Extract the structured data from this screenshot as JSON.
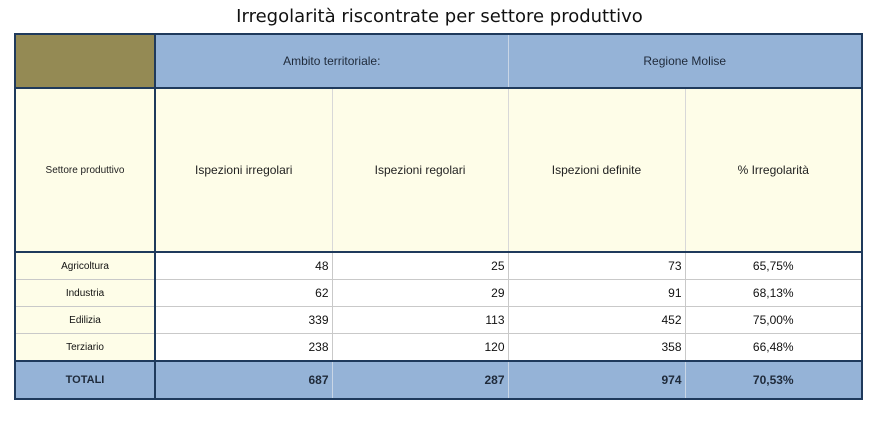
{
  "title": "Irregolarità riscontrate per settore produttivo",
  "header": {
    "group_left": "Ambito territoriale:",
    "group_right": "Regione Molise"
  },
  "columns": {
    "sector": "Settore produttivo",
    "irregular": "Ispezioni irregolari",
    "regular": "Ispezioni regolari",
    "defined": "Ispezioni definite",
    "pct": "% Irregolarità"
  },
  "rows": [
    {
      "sector": "Agricoltura",
      "irregular": "48",
      "regular": "25",
      "defined": "73",
      "pct": "65,75%"
    },
    {
      "sector": "Industria",
      "irregular": "62",
      "regular": "29",
      "defined": "91",
      "pct": "68,13%"
    },
    {
      "sector": "Edilizia",
      "irregular": "339",
      "regular": "113",
      "defined": "452",
      "pct": "75,00%"
    },
    {
      "sector": "Terziario",
      "irregular": "238",
      "regular": "120",
      "defined": "358",
      "pct": "66,48%"
    }
  ],
  "totals": {
    "label": "TOTALI",
    "irregular": "687",
    "regular": "287",
    "defined": "974",
    "pct": "70,53%"
  },
  "colors": {
    "header_blue": "#95b3d7",
    "corner_olive": "#948a54",
    "cream": "#fefde8",
    "border_navy": "#1f3a5c"
  }
}
